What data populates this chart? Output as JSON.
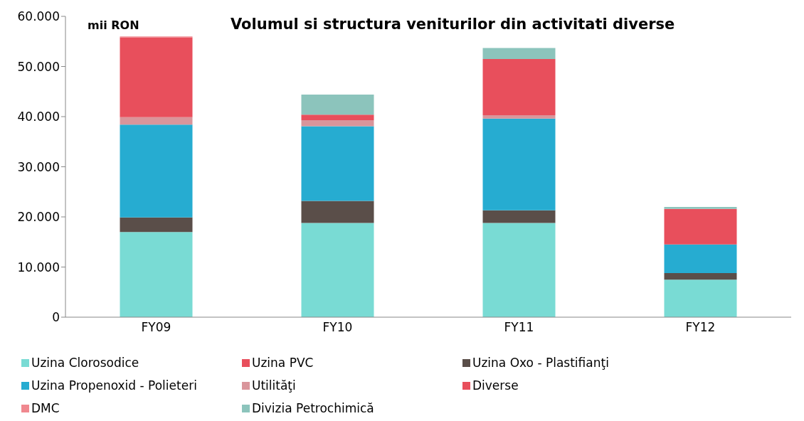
{
  "chart_data": {
    "type": "bar",
    "title": "Volumul si structura veniturilor din activitati diverse",
    "annotations": [
      "mii RON"
    ],
    "categories": [
      "FY09",
      "FY10",
      "FY11",
      "FY12"
    ],
    "stacked": true,
    "series": [
      {
        "name": "Uzina Clorosodice",
        "color": "#79dbd4",
        "values": [
          17000,
          18800,
          18800,
          7500
        ]
      },
      {
        "name": "Uzina PVC",
        "color": "#e84f5c",
        "values": [
          null,
          null,
          null,
          null
        ]
      },
      {
        "name": "Uzina Oxo - Plastifianţi",
        "color": "#5a4e49",
        "values": [
          2900,
          4400,
          2500,
          1300
        ]
      },
      {
        "name": "Uzina Propenoxid - Polieteri",
        "color": "#26acd1",
        "values": [
          18500,
          14900,
          18300,
          5700
        ]
      },
      {
        "name": "Utilităţi",
        "color": "#d9959b",
        "values": [
          1500,
          1200,
          700,
          null
        ]
      },
      {
        "name": "Diverse",
        "color": "#e84f5c",
        "values": [
          15900,
          1100,
          11200,
          7100
        ]
      },
      {
        "name": "DMC",
        "color": "#f0888f",
        "values": [
          200,
          null,
          null,
          null
        ]
      },
      {
        "name": "Divizia Petrochimică",
        "color": "#8cc4bc",
        "values": [
          null,
          4000,
          2200,
          400
        ]
      }
    ],
    "ylim": [
      0,
      60000
    ],
    "yticks": [
      {
        "value": 0,
        "label": "0"
      },
      {
        "value": 10000,
        "label": "10.000"
      },
      {
        "value": 20000,
        "label": "20.000"
      },
      {
        "value": 30000,
        "label": "30.000"
      },
      {
        "value": 40000,
        "label": "40.000"
      },
      {
        "value": 50000,
        "label": "50.000"
      },
      {
        "value": 60000,
        "label": "60.000"
      }
    ],
    "grid": false,
    "legend": "bottom"
  }
}
